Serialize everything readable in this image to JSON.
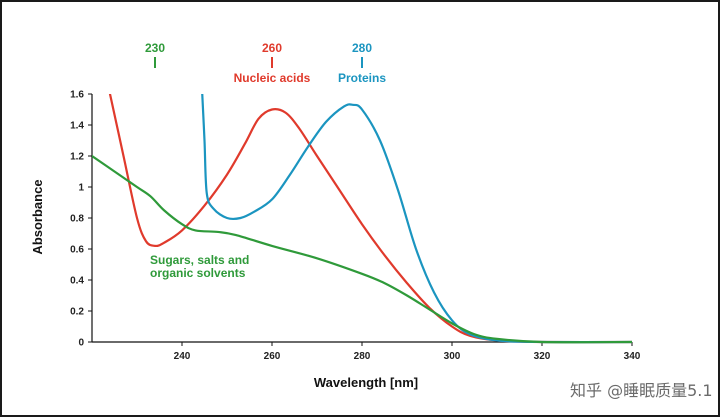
{
  "chart_data": {
    "type": "line",
    "xlabel": "Wavelength [nm]",
    "ylabel": "Absorbance",
    "xlim": [
      220,
      340
    ],
    "ylim": [
      0,
      1.6
    ],
    "x_ticks": [
      240,
      260,
      280,
      300,
      320,
      340
    ],
    "y_ticks": [
      0,
      0.2,
      0.4,
      0.6,
      0.8,
      1,
      1.2,
      1.4,
      1.6
    ],
    "y_tick_labels": [
      "0",
      "0.2",
      "0.4",
      "0.6",
      "0.8",
      "1",
      "1.2",
      "1.4",
      "1.6"
    ],
    "grid": false,
    "series": [
      {
        "name": "Nucleic acids",
        "color": "#e03a2c",
        "points": [
          [
            224,
            1.6
          ],
          [
            227,
            1.2
          ],
          [
            230,
            0.8
          ],
          [
            232,
            0.65
          ],
          [
            234,
            0.62
          ],
          [
            236,
            0.64
          ],
          [
            240,
            0.72
          ],
          [
            245,
            0.88
          ],
          [
            250,
            1.08
          ],
          [
            254,
            1.28
          ],
          [
            257,
            1.44
          ],
          [
            260,
            1.5
          ],
          [
            263,
            1.48
          ],
          [
            266,
            1.38
          ],
          [
            270,
            1.2
          ],
          [
            275,
            0.98
          ],
          [
            280,
            0.76
          ],
          [
            285,
            0.56
          ],
          [
            290,
            0.38
          ],
          [
            295,
            0.22
          ],
          [
            300,
            0.1
          ],
          [
            304,
            0.04
          ],
          [
            310,
            0.01
          ],
          [
            320,
            0.0
          ],
          [
            340,
            0.0
          ]
        ]
      },
      {
        "name": "Proteins",
        "color": "#1b95c0",
        "points": [
          [
            244.5,
            1.6
          ],
          [
            245,
            1.3
          ],
          [
            245.5,
            0.96
          ],
          [
            247,
            0.86
          ],
          [
            250,
            0.8
          ],
          [
            253,
            0.8
          ],
          [
            256,
            0.84
          ],
          [
            260,
            0.92
          ],
          [
            264,
            1.08
          ],
          [
            268,
            1.26
          ],
          [
            272,
            1.42
          ],
          [
            276,
            1.52
          ],
          [
            278,
            1.53
          ],
          [
            280,
            1.5
          ],
          [
            284,
            1.3
          ],
          [
            288,
            0.98
          ],
          [
            292,
            0.6
          ],
          [
            296,
            0.32
          ],
          [
            300,
            0.14
          ],
          [
            304,
            0.05
          ],
          [
            310,
            0.01
          ],
          [
            320,
            0.0
          ],
          [
            340,
            0.0
          ]
        ]
      },
      {
        "name": "Sugars, salts and organic solvents",
        "color": "#2f9a3a",
        "points": [
          [
            220,
            1.2
          ],
          [
            225,
            1.1
          ],
          [
            230,
            1.0
          ],
          [
            233,
            0.94
          ],
          [
            236,
            0.85
          ],
          [
            240,
            0.76
          ],
          [
            243,
            0.72
          ],
          [
            248,
            0.71
          ],
          [
            252,
            0.69
          ],
          [
            260,
            0.62
          ],
          [
            270,
            0.54
          ],
          [
            280,
            0.44
          ],
          [
            285,
            0.38
          ],
          [
            290,
            0.3
          ],
          [
            295,
            0.21
          ],
          [
            300,
            0.12
          ],
          [
            305,
            0.05
          ],
          [
            310,
            0.02
          ],
          [
            320,
            0.0
          ],
          [
            340,
            0.0
          ]
        ]
      }
    ],
    "annotations": [
      {
        "wavelength": "230",
        "label": "",
        "color": "#2f9a3a",
        "x": 234
      },
      {
        "wavelength": "260",
        "label": "Nucleic acids",
        "color": "#e03a2c",
        "x": 260
      },
      {
        "wavelength": "280",
        "label": "Proteins",
        "color": "#1b95c0",
        "x": 280
      }
    ],
    "series_label": {
      "lines": [
        "Sugars, salts and",
        "organic solvents"
      ],
      "color": "#2f9a3a"
    }
  },
  "watermark": "知乎 @睡眠质量5.1"
}
